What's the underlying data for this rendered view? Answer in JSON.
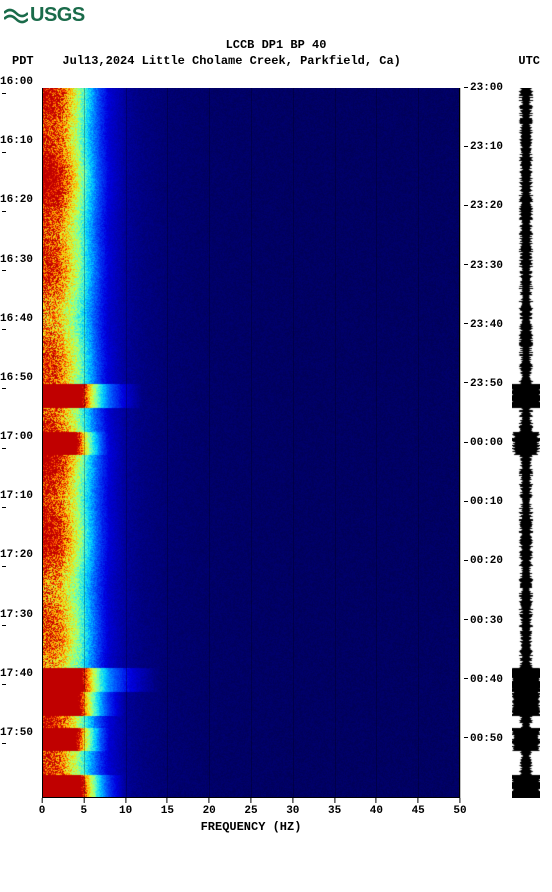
{
  "logo": {
    "text": "USGS",
    "color": "#1a6b4a"
  },
  "header": {
    "title": "LCCB DP1 BP 40",
    "left_label": "PDT",
    "date": "Jul13,2024",
    "location": "Little Cholame Creek, Parkfield, Ca)",
    "right_label": "UTC"
  },
  "chart": {
    "type": "spectrogram",
    "x_axis": {
      "label": "FREQUENCY (HZ)",
      "min": 0,
      "max": 50,
      "tick_step": 5,
      "label_fontsize": 12,
      "tick_fontsize": 11
    },
    "y_left": {
      "ticks": [
        "16:00",
        "16:10",
        "16:20",
        "16:30",
        "16:40",
        "16:50",
        "17:00",
        "17:10",
        "17:20",
        "17:30",
        "17:40",
        "17:50"
      ],
      "min": 0,
      "max": 120,
      "step": 10
    },
    "y_right": {
      "ticks": [
        "23:00",
        "23:10",
        "23:20",
        "23:30",
        "23:40",
        "23:50",
        "00:00",
        "00:10",
        "00:20",
        "00:30",
        "00:40",
        "00:50"
      ],
      "min": 0,
      "max": 120,
      "step": 10
    },
    "colormap": {
      "stops": [
        [
          0.0,
          "#00002a"
        ],
        [
          0.18,
          "#000080"
        ],
        [
          0.35,
          "#0000e0"
        ],
        [
          0.5,
          "#0060ff"
        ],
        [
          0.62,
          "#00d0ff"
        ],
        [
          0.72,
          "#60ffc0"
        ],
        [
          0.82,
          "#d0ff40"
        ],
        [
          0.9,
          "#ffc000"
        ],
        [
          0.96,
          "#ff4000"
        ],
        [
          1.0,
          "#c00000"
        ]
      ]
    },
    "intensity_profile": {
      "comment": "intensity 0-1 as function of frequency Hz; high at low freq, drops after ~6Hz",
      "points": [
        [
          0,
          1.0
        ],
        [
          1,
          0.98
        ],
        [
          2,
          0.95
        ],
        [
          3,
          0.88
        ],
        [
          4,
          0.8
        ],
        [
          5,
          0.68
        ],
        [
          6,
          0.55
        ],
        [
          7,
          0.42
        ],
        [
          8,
          0.32
        ],
        [
          10,
          0.22
        ],
        [
          12,
          0.18
        ],
        [
          15,
          0.15
        ],
        [
          20,
          0.13
        ],
        [
          30,
          0.12
        ],
        [
          50,
          0.12
        ]
      ]
    },
    "events": [
      {
        "t": 52,
        "strength": 0.95,
        "width": 12
      },
      {
        "t": 60,
        "strength": 0.7,
        "width": 8
      },
      {
        "t": 100,
        "strength": 0.92,
        "width": 14
      },
      {
        "t": 104,
        "strength": 0.85,
        "width": 10
      },
      {
        "t": 110,
        "strength": 0.8,
        "width": 8
      },
      {
        "t": 118,
        "strength": 0.9,
        "width": 10
      }
    ],
    "noise_amount": 0.18,
    "grid_color": "rgba(0,0,0,0.25)",
    "background_color": "#ffffff"
  },
  "amplitude": {
    "color": "#000000",
    "base_width": 0.4,
    "events_boost": 1.0
  }
}
